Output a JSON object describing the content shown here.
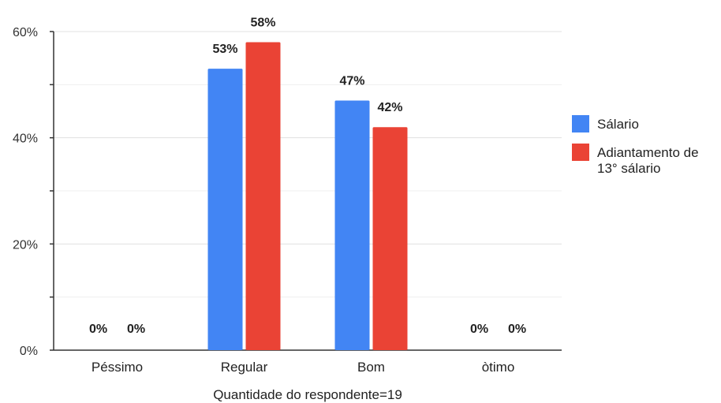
{
  "chart_data": {
    "type": "bar",
    "categories": [
      "Péssimo",
      "Regular",
      "Bom",
      "òtimo"
    ],
    "series": [
      {
        "name": "Sálario",
        "values": [
          0,
          53,
          47,
          0
        ],
        "labels": [
          "0%",
          "53%",
          "47%",
          "0%"
        ],
        "color": "#4285f4"
      },
      {
        "name": "Adiantamento de 13° sálario",
        "legend_lines": [
          "Adiantamento de",
          "13° sálario"
        ],
        "values": [
          0,
          58,
          42,
          0
        ],
        "labels": [
          "0%",
          "58%",
          "42%",
          "0%"
        ],
        "color": "#ea4335"
      }
    ],
    "xlabel": "Quantidade do respondente=19",
    "ylabel": "",
    "ylim": [
      0,
      60
    ],
    "yticks": [
      0,
      20,
      40,
      60
    ],
    "ytick_labels": [
      "0%",
      "20%",
      "40%",
      "60%"
    ],
    "grid": true,
    "legend_position": "right"
  }
}
